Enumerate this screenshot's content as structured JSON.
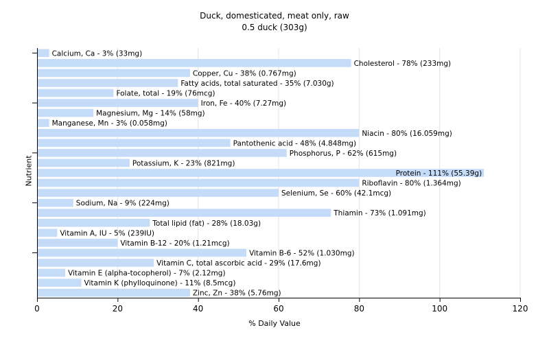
{
  "chart_data": {
    "type": "bar",
    "orientation": "horizontal",
    "title": "Duck, domesticated, meat only, raw",
    "subtitle": "0.5 duck (303g)",
    "xlabel": "% Daily Value",
    "ylabel": "Nutrient",
    "xlim": [
      0,
      120
    ],
    "xticks": [
      0,
      20,
      40,
      60,
      80,
      100,
      120
    ],
    "grid": true,
    "bar_color": "#c5dcf9",
    "grid_color": "#e4e4e4",
    "bars": [
      {
        "value": 3,
        "label": "Calcium, Ca - 3% (33mg)"
      },
      {
        "value": 78,
        "label": "Cholesterol - 78% (233mg)"
      },
      {
        "value": 38,
        "label": "Copper, Cu - 38% (0.767mg)"
      },
      {
        "value": 35,
        "label": "Fatty acids, total saturated - 35% (7.030g)"
      },
      {
        "value": 19,
        "label": "Folate, total - 19% (76mcg)"
      },
      {
        "value": 40,
        "label": "Iron, Fe - 40% (7.27mg)"
      },
      {
        "value": 14,
        "label": "Magnesium, Mg - 14% (58mg)"
      },
      {
        "value": 3,
        "label": "Manganese, Mn - 3% (0.058mg)"
      },
      {
        "value": 80,
        "label": "Niacin - 80% (16.059mg)"
      },
      {
        "value": 48,
        "label": "Pantothenic acid - 48% (4.848mg)"
      },
      {
        "value": 62,
        "label": "Phosphorus, P - 62% (615mg)"
      },
      {
        "value": 23,
        "label": "Potassium, K - 23% (821mg)"
      },
      {
        "value": 111,
        "label": "Protein - 111% (55.39g)"
      },
      {
        "value": 80,
        "label": "Riboflavin - 80% (1.364mg)"
      },
      {
        "value": 60,
        "label": "Selenium, Se - 60% (42.1mcg)"
      },
      {
        "value": 9,
        "label": "Sodium, Na - 9% (224mg)"
      },
      {
        "value": 73,
        "label": "Thiamin - 73% (1.091mg)"
      },
      {
        "value": 28,
        "label": "Total lipid (fat) - 28% (18.03g)"
      },
      {
        "value": 5,
        "label": "Vitamin A, IU - 5% (239IU)"
      },
      {
        "value": 20,
        "label": "Vitamin B-12 - 20% (1.21mcg)"
      },
      {
        "value": 52,
        "label": "Vitamin B-6 - 52% (1.030mg)"
      },
      {
        "value": 29,
        "label": "Vitamin C, total ascorbic acid - 29% (17.6mg)"
      },
      {
        "value": 7,
        "label": "Vitamin E (alpha-tocopherol) - 7% (2.12mg)"
      },
      {
        "value": 11,
        "label": "Vitamin K (phylloquinone) - 11% (8.5mcg)"
      },
      {
        "value": 38,
        "label": "Zinc, Zn - 38% (5.76mg)"
      }
    ]
  }
}
